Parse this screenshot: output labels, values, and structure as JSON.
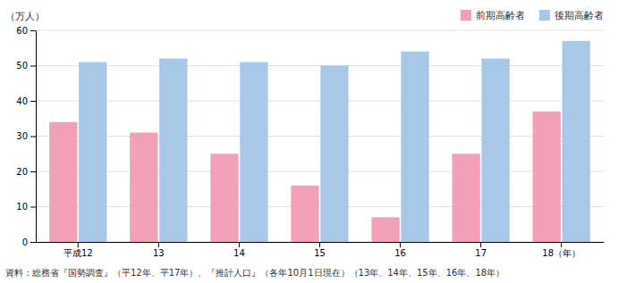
{
  "chart_data": {
    "type": "bar",
    "categories": [
      "平成12",
      "13",
      "14",
      "15",
      "16",
      "17",
      "18（年）"
    ],
    "series": [
      {
        "name": "前期高齢者",
        "color": "#f2a0b8",
        "values": [
          34,
          31,
          25,
          16,
          7,
          25,
          37
        ]
      },
      {
        "name": "後期高齢者",
        "color": "#a8c8e8",
        "values": [
          51,
          52,
          51,
          50,
          54,
          52,
          57
        ]
      }
    ],
    "ylim": [
      0,
      60
    ],
    "yticks": [
      0,
      10,
      20,
      30,
      40,
      50,
      60
    ],
    "ylabel": "（万人）",
    "caption": "資料：総務省『国勢調査』（平12年、平17年）、『推計人口』（各年10月1日現在）（13年、14年、15年、16年、18年）",
    "grid": true,
    "legend": "upper right"
  }
}
